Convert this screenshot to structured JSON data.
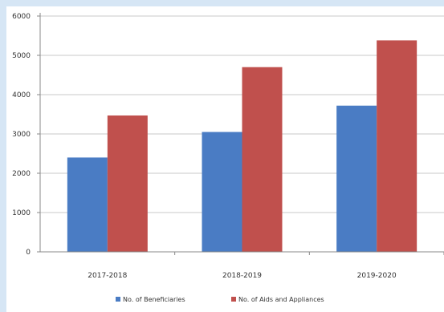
{
  "chart_data": {
    "type": "bar",
    "categories": [
      "2017-2018",
      "2018-2019",
      "2019-2020"
    ],
    "series": [
      {
        "name": "No. of Beneficiaries",
        "values": [
          2400,
          3050,
          3720
        ],
        "color": "#4a7cc4"
      },
      {
        "name": "No. of Aids and Appliances",
        "values": [
          3470,
          4700,
          5380
        ],
        "color": "#c0504d"
      }
    ],
    "ylim": [
      0,
      6000
    ],
    "yticks": [
      "0",
      "1000",
      "2000",
      "3000",
      "4000",
      "5000",
      "6000"
    ],
    "grid": true,
    "legend": "bottom"
  }
}
